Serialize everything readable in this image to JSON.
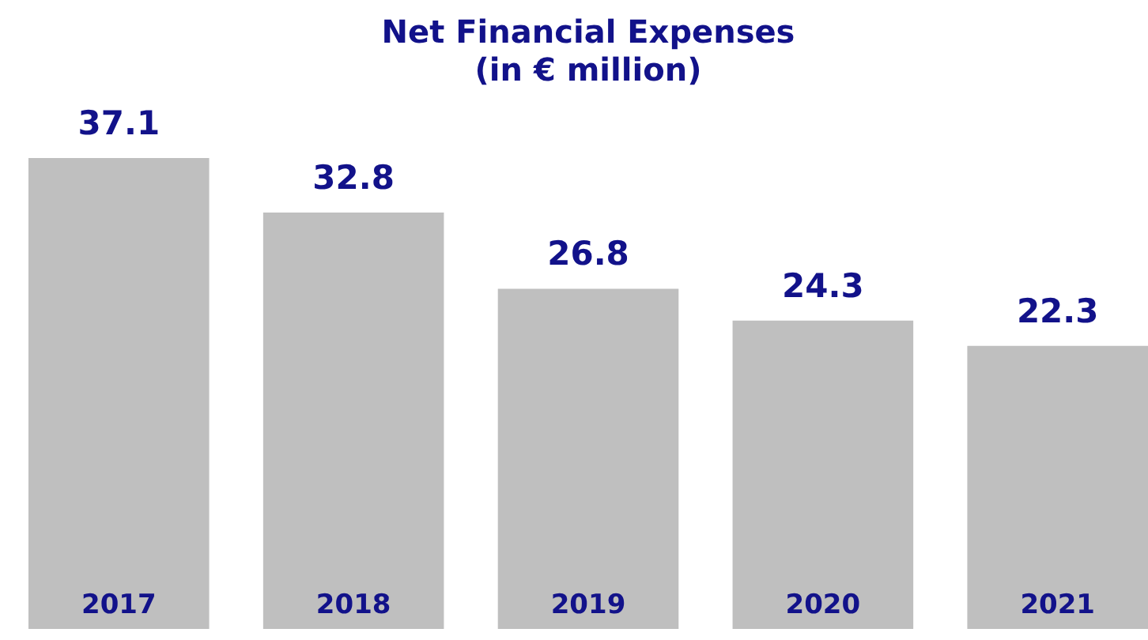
{
  "chart_data": {
    "type": "bar",
    "title": "Net Financial  Expenses",
    "subtitle": "(in € million)",
    "categories": [
      "2017",
      "2018",
      "2019",
      "2020",
      "2021"
    ],
    "values": [
      37.1,
      32.8,
      26.8,
      24.3,
      22.3
    ],
    "color": "#bfbfbf",
    "data_labels": true,
    "tick_labels": false
  }
}
